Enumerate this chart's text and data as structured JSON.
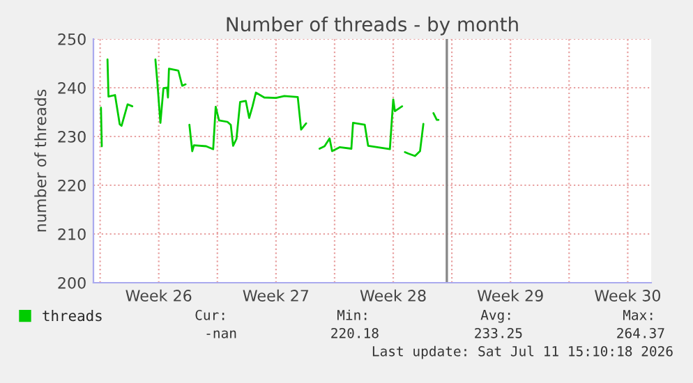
{
  "chart_data": {
    "type": "line",
    "title": "Number of threads - by month",
    "ylabel": "number of threads",
    "x": [
      "2026-06-22T01:12",
      "2026-06-22T02:24",
      "2026-06-22T03:36",
      "2026-06-22T10:34",
      "2026-06-22T12:00",
      "2026-06-22T21:22",
      "2026-06-23T04:05",
      "2026-06-23T06:43",
      "2026-06-23T15:22",
      "2026-06-23T22:05",
      "2026-06-24T12:00",
      "2026-06-25T07:12",
      "2026-06-25T09:36",
      "2026-06-25T14:24",
      "2026-06-25T18:43",
      "2026-06-26T00:00",
      "2026-06-26T01:12",
      "2026-06-26T02:38",
      "2026-06-26T16:05",
      "2026-06-26T21:36",
      "2026-06-27T02:24",
      "2026-06-27T04:48",
      "2026-06-27T07:55",
      "2026-06-27T12:00",
      "2026-06-27T14:24",
      "2026-06-28T07:55",
      "2026-06-28T18:00",
      "2026-06-28T21:36",
      "2026-06-29T02:24",
      "2026-06-29T14:24",
      "2026-06-29T19:12",
      "2026-06-29T22:34",
      "2026-06-30T03:22",
      "2026-06-30T08:38",
      "2026-06-30T16:48",
      "2026-06-30T21:36",
      "2026-07-01T02:24",
      "2026-07-01T07:12",
      "2026-07-01T19:12",
      "2026-07-02T12:00",
      "2026-07-03T00:00",
      "2026-07-03T19:12",
      "2026-07-04T00:00",
      "2026-07-04T07:12",
      "2026-07-04T14:24",
      "2026-07-05T02:24",
      "2026-07-05T09:36",
      "2026-07-05T16:48",
      "2026-07-05T20:24",
      "2026-07-06T07:12",
      "2026-07-07T00:00",
      "2026-07-07T02:24",
      "2026-07-07T19:12",
      "2026-07-08T00:00",
      "2026-07-09T07:12",
      "2026-07-09T12:00",
      "2026-07-09T14:24",
      "2026-07-10T00:43",
      "2026-07-10T02:24",
      "2026-07-10T04:48",
      "2026-07-10T09:36",
      "2026-07-10T19:12",
      "2026-07-11T02:24",
      "2026-07-11T07:12",
      "2026-07-11T14:24",
      "2026-07-11T21:36",
      "2026-07-12T02:24",
      "2026-07-12T04:48"
    ],
    "series": [
      {
        "name": "threads",
        "color": "#00cc00",
        "values": [
          235.9,
          228,
          null,
          245.8,
          238.2,
          238.5,
          232.5,
          232.2,
          236.6,
          236.2,
          null,
          245.8,
          241.8,
          232.8,
          239.9,
          240,
          238,
          243.9,
          243.5,
          240.4,
          240.7,
          null,
          232.4,
          227.0,
          228.2,
          228,
          227.4,
          236.1,
          233.3,
          233,
          232.4,
          228.1,
          229.5,
          237.1,
          237.3,
          233.8,
          236.2,
          239,
          238,
          237.9,
          238.3,
          238.1,
          231.4,
          232.7,
          null,
          227.5,
          228,
          229.6,
          227,
          227.8,
          227.5,
          232.8,
          232.4,
          228.1,
          227.4,
          237.6,
          235.2,
          236.2,
          null,
          226.8,
          226.5,
          226,
          227.0,
          232.6,
          null,
          234.8,
          233.4,
          233.4
        ]
      }
    ],
    "xlim": [
      "2026-06-21T14:24",
      "2026-07-24T21:36"
    ],
    "xticks": [
      {
        "value": "2026-06-22",
        "label": null
      },
      {
        "value": "2026-06-25T12:00",
        "label": "Week 26"
      },
      {
        "value": "2026-06-29",
        "label": null
      },
      {
        "value": "2026-07-02T12:00",
        "label": "Week 27"
      },
      {
        "value": "2026-07-06",
        "label": null
      },
      {
        "value": "2026-07-09T12:00",
        "label": "Week 28"
      },
      {
        "value": "2026-07-13",
        "label": null
      },
      {
        "value": "2026-07-16T12:00",
        "label": "Week 29"
      },
      {
        "value": "2026-07-20",
        "label": null
      },
      {
        "value": "2026-07-23T12:00",
        "label": "Week 30"
      }
    ],
    "ylim": [
      200,
      250
    ],
    "yticks": [
      200,
      210,
      220,
      230,
      240,
      250
    ],
    "grid": true,
    "legend": "bottom left",
    "ref_lines": [
      {
        "axis": "x",
        "value": "2026-07-12T16:48",
        "color": "#888888"
      }
    ],
    "annotations": [
      "Cur:",
      "-nan",
      "Min:",
      "220.18",
      "Avg:",
      "233.25",
      "Max:",
      "264.37",
      "Last update: Sat Jul 11 15:10:18 2026"
    ]
  }
}
